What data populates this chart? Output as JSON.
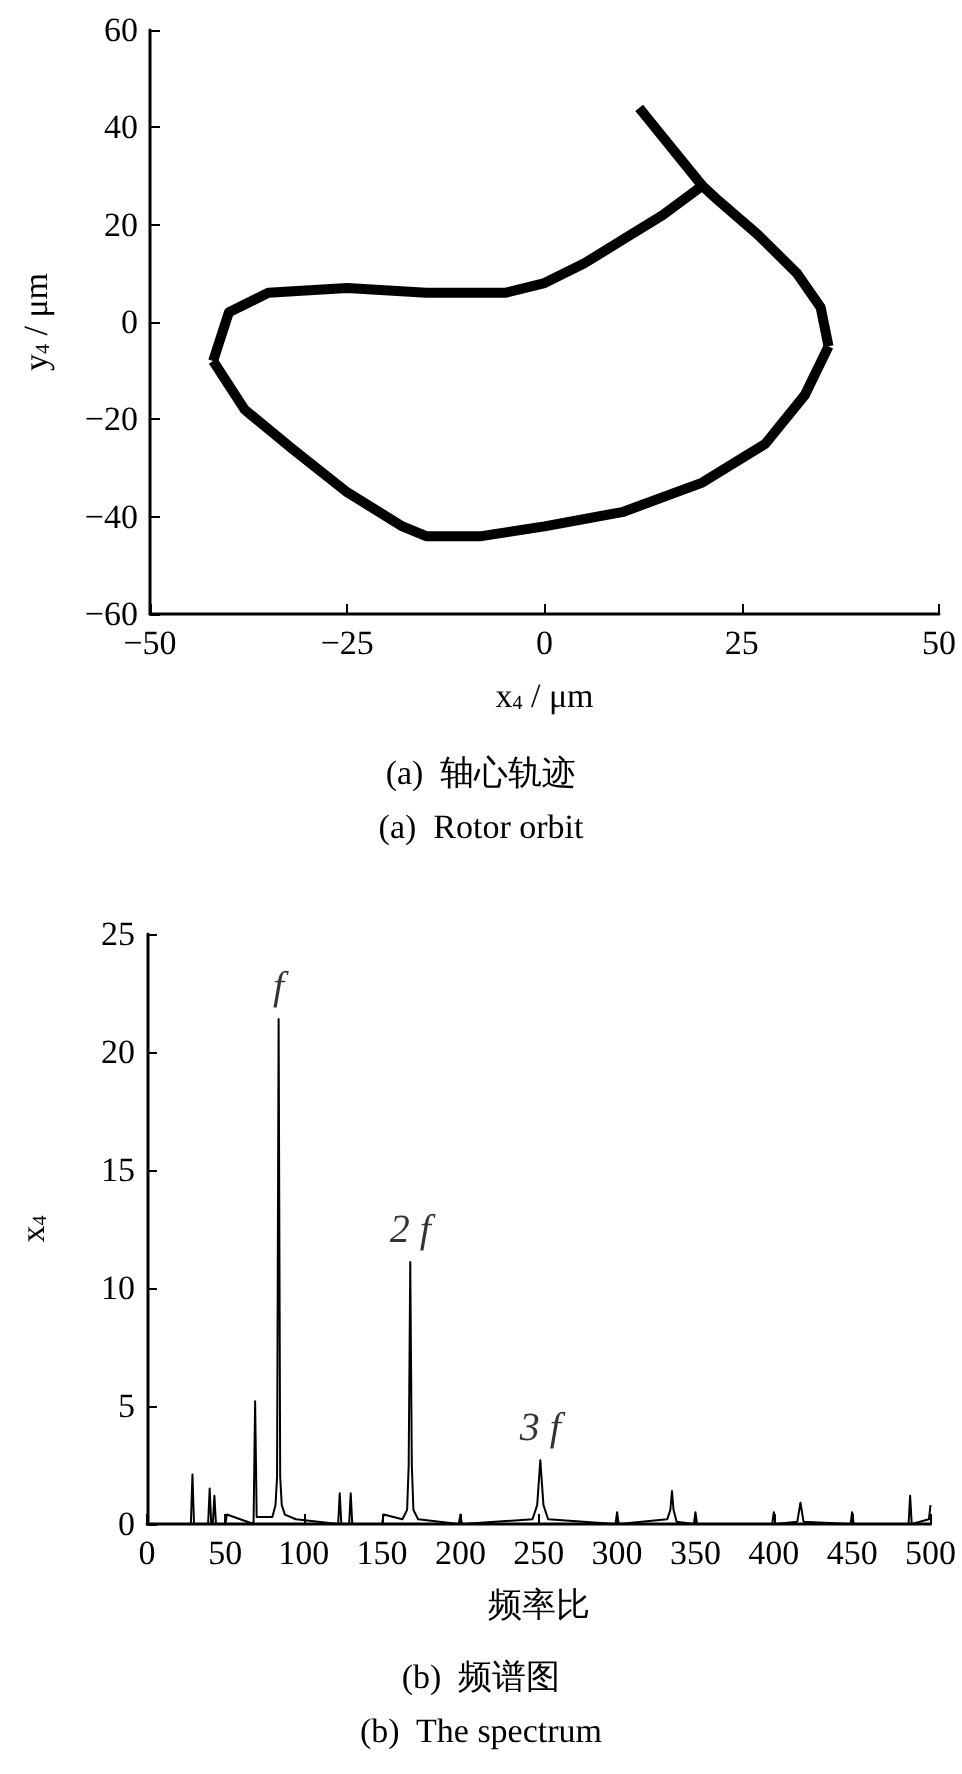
{
  "chart_data": [
    {
      "type": "line",
      "title": "(a)  轴心轨迹",
      "subtitle": "(a)  Rotor orbit",
      "xlabel": "x$_{4}$ / μm",
      "ylabel": "y$_{4}$ / μm",
      "series": [
        {
          "color": "#000000",
          "x": [
            12,
            15,
            20,
            22,
            27,
            32,
            35,
            36
          ],
          "values": [
            44,
            38,
            28,
            25,
            18,
            10,
            3,
            -5
          ]
        },
        {
          "color": "#000000",
          "x": [
            -42,
            -40,
            -35,
            -25,
            -15,
            -5,
            0,
            5,
            10,
            15,
            20
          ],
          "values": [
            -8,
            2,
            6,
            7,
            6,
            6,
            8,
            12,
            17,
            22,
            28
          ]
        },
        {
          "color": "#000000",
          "x": [
            -42,
            -38,
            -32,
            -25,
            -18,
            -15,
            -8,
            0,
            10,
            20,
            28,
            33,
            36
          ],
          "values": [
            -8,
            -18,
            -26,
            -35,
            -42,
            -44,
            -44,
            -42,
            -39,
            -33,
            -25,
            -15,
            -5
          ]
        }
      ],
      "xlim": [
        -50,
        50
      ],
      "ylim": [
        -60,
        60
      ],
      "xticks": [
        -50,
        -25,
        0,
        25,
        50
      ],
      "yticks": [
        -60,
        -40,
        -20,
        0,
        20,
        40,
        60
      ]
    },
    {
      "type": "line",
      "title": "(b)  频谱图",
      "subtitle": "(b)  The spectrum",
      "xlabel": "频率比",
      "ylabel": "x$_{4}$",
      "color": "#000000",
      "x": [
        0,
        28,
        29,
        30,
        39,
        40,
        41,
        42,
        43,
        44,
        50,
        51,
        68,
        69,
        70,
        80,
        82,
        83,
        84,
        85,
        86,
        88,
        95,
        122,
        123,
        124,
        129,
        130,
        131,
        150,
        151,
        163,
        166,
        167,
        168,
        169,
        170,
        173,
        199,
        200,
        201,
        246,
        249,
        251,
        253,
        256,
        299,
        300,
        301,
        332,
        334,
        335,
        336,
        338,
        349,
        350,
        351,
        399,
        400,
        401,
        415,
        417,
        419,
        449,
        450,
        451,
        486,
        487,
        488,
        499,
        500
      ],
      "values": [
        0,
        0,
        2.1,
        0,
        0,
        1.5,
        0,
        0,
        1.2,
        0,
        0,
        0.4,
        0,
        5.2,
        0.3,
        0.3,
        0.8,
        2,
        21.4,
        2,
        0.8,
        0.4,
        0.2,
        0,
        1.3,
        0,
        0,
        1.3,
        0,
        0,
        0.4,
        0.2,
        0.6,
        2.5,
        11.1,
        2.5,
        0.6,
        0.2,
        0,
        0.4,
        0,
        0.2,
        0.8,
        2.7,
        0.8,
        0.2,
        0,
        0.5,
        0,
        0.2,
        0.6,
        1.4,
        0.6,
        0.1,
        0,
        0.5,
        0,
        0,
        0.5,
        0,
        0.1,
        0.9,
        0.1,
        0,
        0.5,
        0,
        0,
        1.2,
        0,
        0.2,
        0.8
      ],
      "xlim": [
        0,
        500
      ],
      "ylim": [
        0,
        25
      ],
      "xticks": [
        0,
        50,
        100,
        150,
        200,
        250,
        300,
        350,
        400,
        450,
        500
      ],
      "yticks": [
        0,
        5,
        10,
        15,
        20,
        25
      ],
      "annotations": [
        {
          "text": "f",
          "x": 84,
          "y": 21.4
        },
        {
          "text": "2 f",
          "x": 168,
          "y": 11.1
        },
        {
          "text": "3 f",
          "x": 251,
          "y": 2.7
        }
      ]
    }
  ]
}
